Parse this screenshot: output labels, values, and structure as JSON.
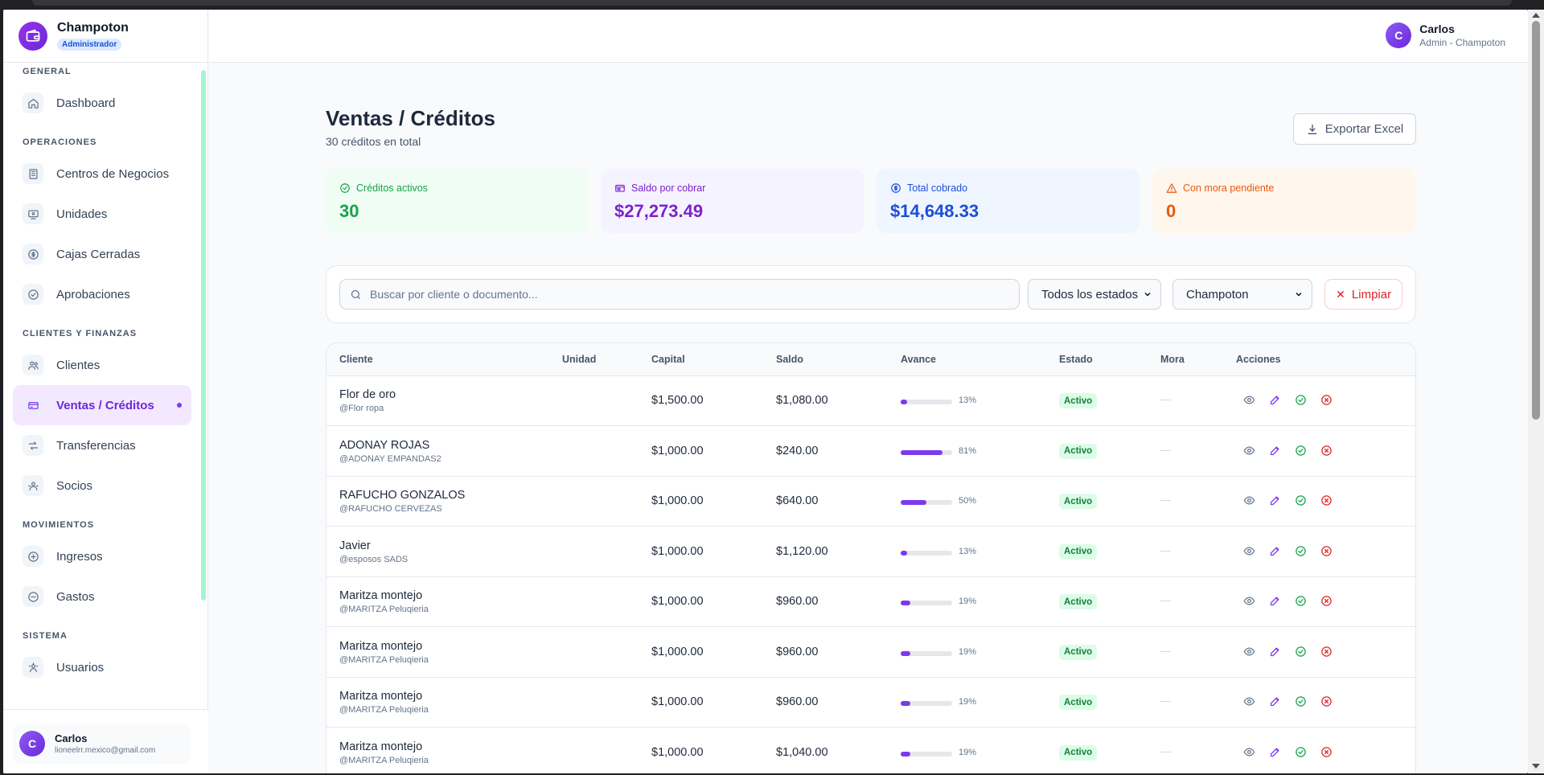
{
  "brand": {
    "name": "Champoton",
    "role": "Administrador"
  },
  "nav": {
    "sections": [
      {
        "title": "GENERAL",
        "items": [
          {
            "label": "Dashboard",
            "icon": "home-icon"
          }
        ]
      },
      {
        "title": "OPERACIONES",
        "items": [
          {
            "label": "Centros de Negocios",
            "icon": "building-icon"
          },
          {
            "label": "Unidades",
            "icon": "monitor-icon"
          },
          {
            "label": "Cajas Cerradas",
            "icon": "dollar-icon"
          },
          {
            "label": "Aprobaciones",
            "icon": "check-circle-icon"
          }
        ]
      },
      {
        "title": "CLIENTES Y FINANZAS",
        "items": [
          {
            "label": "Clientes",
            "icon": "users-icon"
          },
          {
            "label": "Ventas / Créditos",
            "icon": "credit-card-icon",
            "active": true
          },
          {
            "label": "Transferencias",
            "icon": "transfer-icon"
          },
          {
            "label": "Socios",
            "icon": "socios-icon"
          }
        ]
      },
      {
        "title": "MOVIMIENTOS",
        "items": [
          {
            "label": "Ingresos",
            "icon": "plus-circle-icon"
          },
          {
            "label": "Gastos",
            "icon": "minus-circle-icon"
          }
        ]
      },
      {
        "title": "SISTEMA",
        "items": [
          {
            "label": "Usuarios",
            "icon": "users-gear-icon"
          }
        ]
      }
    ]
  },
  "sidebar_user": {
    "initial": "C",
    "name": "Carlos",
    "email": "lioneelrr.mexico@gmail.com"
  },
  "topbar_user": {
    "initial": "C",
    "name": "Carlos",
    "role": "Admin - Champoton"
  },
  "page": {
    "title": "Ventas / Créditos",
    "subtitle": "30 créditos en total",
    "export_label": "Exportar Excel"
  },
  "stats": [
    {
      "label": "Créditos activos",
      "value": "30",
      "color": "#16a34a",
      "bg": "#f0fdf4",
      "icon": "check-circle-icon"
    },
    {
      "label": "Saldo por cobrar",
      "value": "$27,273.49",
      "color": "#7e22ce",
      "bg": "#f5f3ff",
      "icon": "wallet-icon"
    },
    {
      "label": "Total cobrado",
      "value": "$14,648.33",
      "color": "#1d4ed8",
      "bg": "#eff6ff",
      "icon": "dollar-circle-icon"
    },
    {
      "label": "Con mora pendiente",
      "value": "0",
      "color": "#ea580c",
      "bg": "#fff7ed",
      "icon": "warning-icon"
    }
  ],
  "filters": {
    "search_placeholder": "Buscar por cliente o documento...",
    "status_selected": "Todos los estados",
    "center_selected": "Champoton",
    "clear_label": "Limpiar"
  },
  "table": {
    "headers": [
      "Cliente",
      "Unidad",
      "Capital",
      "Saldo",
      "Avance",
      "Estado",
      "Mora",
      "Acciones"
    ],
    "rows": [
      {
        "name": "Flor de oro",
        "alias": "@Flor ropa",
        "capital": "$1,500.00",
        "saldo": "$1,080.00",
        "progress": 13,
        "progress_label": "13%",
        "estado": "Activo",
        "mora": "—"
      },
      {
        "name": "ADONAY ROJAS",
        "alias": "@ADONAY EMPANDAS2",
        "capital": "$1,000.00",
        "saldo": "$240.00",
        "progress": 81,
        "progress_label": "81%",
        "estado": "Activo",
        "mora": "—"
      },
      {
        "name": "RAFUCHO GONZALOS",
        "alias": "@RAFUCHO CERVEZAS",
        "capital": "$1,000.00",
        "saldo": "$640.00",
        "progress": 50,
        "progress_label": "50%",
        "estado": "Activo",
        "mora": "—"
      },
      {
        "name": "Javier",
        "alias": "@esposos SADS",
        "capital": "$1,000.00",
        "saldo": "$1,120.00",
        "progress": 13,
        "progress_label": "13%",
        "estado": "Activo",
        "mora": "—"
      },
      {
        "name": "Maritza montejo",
        "alias": "@MARITZA Peluqieria",
        "capital": "$1,000.00",
        "saldo": "$960.00",
        "progress": 19,
        "progress_label": "19%",
        "estado": "Activo",
        "mora": "—"
      },
      {
        "name": "Maritza montejo",
        "alias": "@MARITZA Peluqieria",
        "capital": "$1,000.00",
        "saldo": "$960.00",
        "progress": 19,
        "progress_label": "19%",
        "estado": "Activo",
        "mora": "—"
      },
      {
        "name": "Maritza montejo",
        "alias": "@MARITZA Peluqieria",
        "capital": "$1,000.00",
        "saldo": "$960.00",
        "progress": 19,
        "progress_label": "19%",
        "estado": "Activo",
        "mora": "—"
      },
      {
        "name": "Maritza montejo",
        "alias": "@MARITZA Peluqieria",
        "capital": "$1,000.00",
        "saldo": "$1,040.00",
        "progress": 19,
        "progress_label": "19%",
        "estado": "Activo",
        "mora": "—"
      }
    ]
  }
}
